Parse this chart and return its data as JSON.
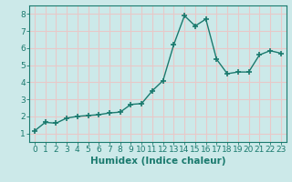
{
  "x": [
    0,
    1,
    2,
    3,
    4,
    5,
    6,
    7,
    8,
    9,
    10,
    11,
    12,
    13,
    14,
    15,
    16,
    17,
    18,
    19,
    20,
    21,
    22,
    23
  ],
  "y": [
    1.15,
    1.65,
    1.6,
    1.9,
    2.0,
    2.05,
    2.1,
    2.2,
    2.25,
    2.7,
    2.75,
    3.5,
    4.1,
    6.2,
    7.9,
    7.3,
    7.7,
    5.35,
    4.5,
    4.6,
    4.6,
    5.6,
    5.85,
    5.7
  ],
  "line_color": "#1a7a6e",
  "marker": "+",
  "marker_size": 4,
  "bg_color": "#cce9e9",
  "grid_color": "#e8c8c8",
  "xlabel": "Humidex (Indice chaleur)",
  "ylim": [
    0.5,
    8.5
  ],
  "xlim": [
    -0.5,
    23.5
  ],
  "yticks": [
    1,
    2,
    3,
    4,
    5,
    6,
    7,
    8
  ],
  "xticks": [
    0,
    1,
    2,
    3,
    4,
    5,
    6,
    7,
    8,
    9,
    10,
    11,
    12,
    13,
    14,
    15,
    16,
    17,
    18,
    19,
    20,
    21,
    22,
    23
  ],
  "tick_label_fontsize": 6.5,
  "xlabel_fontsize": 7.5,
  "spine_color": "#1a7a6e",
  "linewidth": 1.0,
  "marker_linewidth": 1.2
}
